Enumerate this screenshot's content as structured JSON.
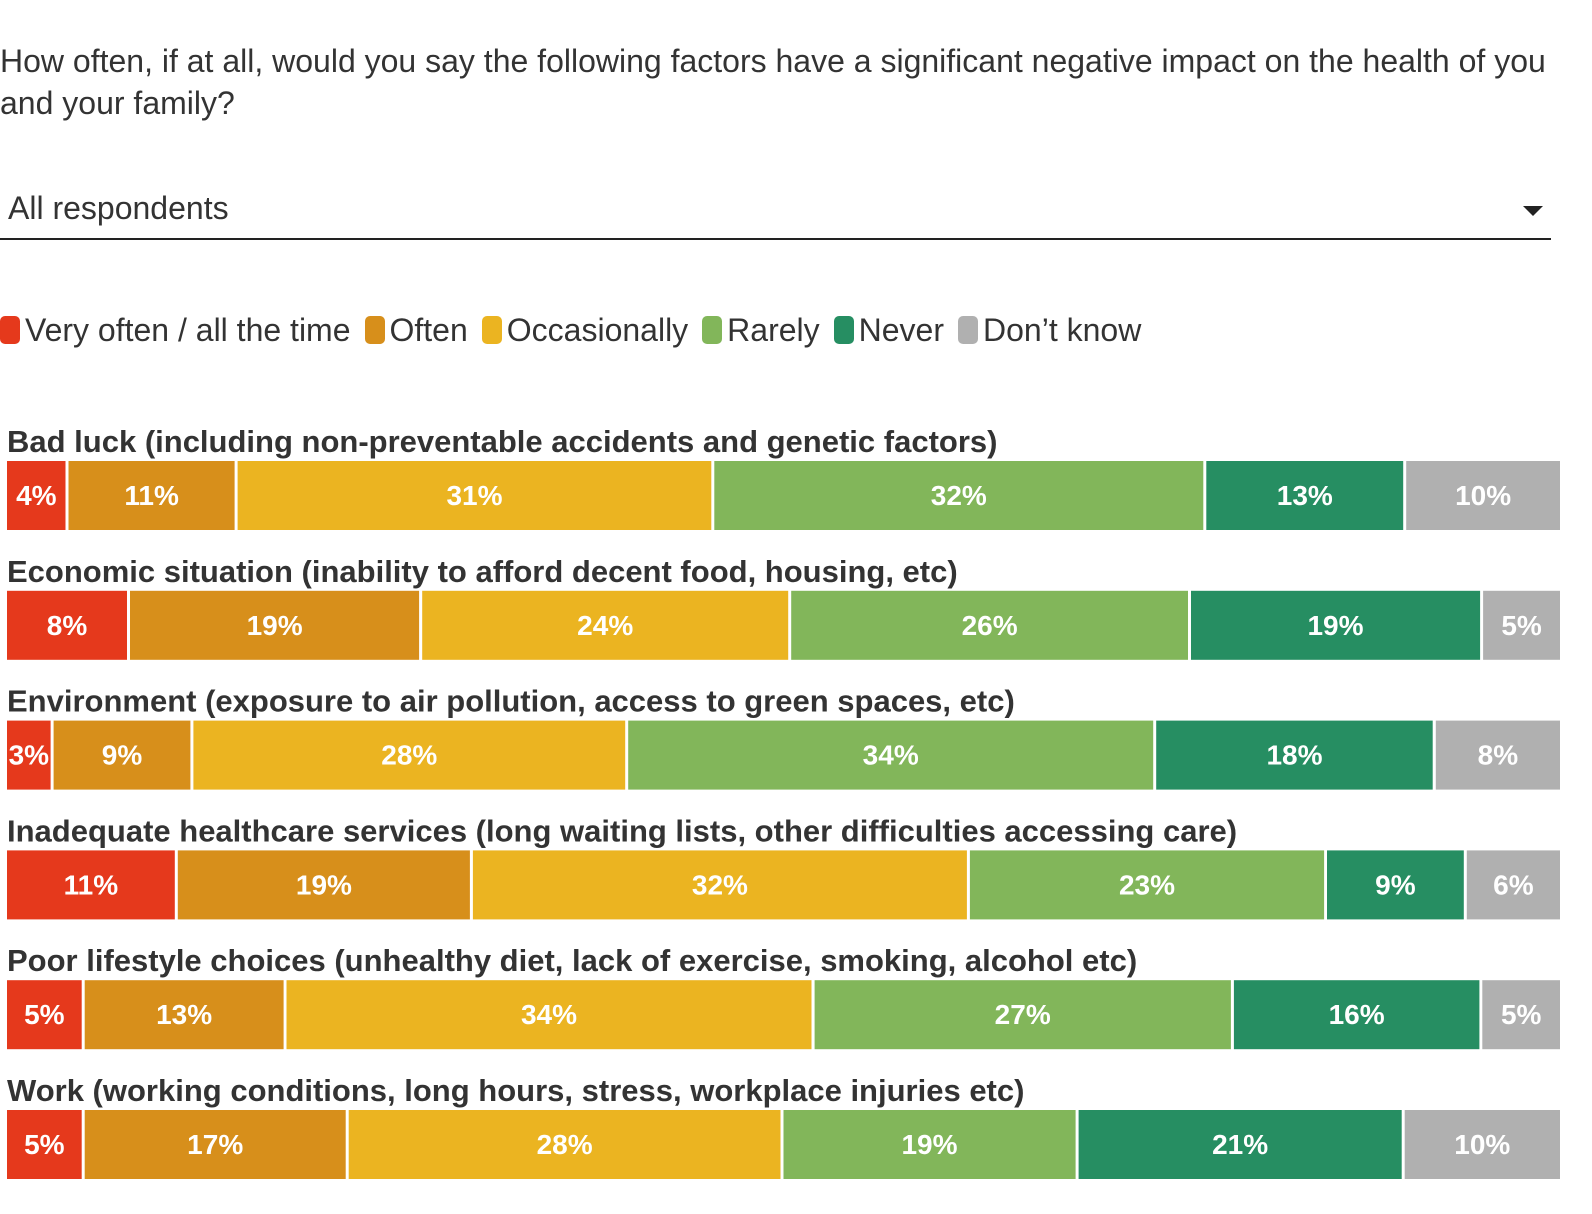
{
  "question": "How often, if at all, would you say the following factors have a significant negative impact on the health of you and your family?",
  "filter": {
    "selected": "All respondents",
    "icon": "chevron-down-icon"
  },
  "chart_data": {
    "type": "bar",
    "orientation": "horizontal",
    "stacked": true,
    "normalized": true,
    "legend_position": "top-left",
    "grid": false,
    "unit": "%",
    "categories": [
      "Bad luck (including non-preventable accidents and genetic factors)",
      "Economic situation (inability to afford decent food, housing, etc)",
      "Environment (exposure to air pollution, access to green spaces, etc)",
      "Inadequate healthcare services (long waiting lists, other difficulties accessing care)",
      "Poor lifestyle choices (unhealthy diet, lack of exercise, smoking, alcohol etc)",
      "Work (working conditions, long hours, stress, workplace injuries etc)"
    ],
    "series": [
      {
        "name": "Very often / all the time",
        "color": "#e5391c",
        "values": [
          4,
          8,
          3,
          11,
          5,
          5
        ]
      },
      {
        "name": "Often",
        "color": "#d78f1b",
        "values": [
          11,
          19,
          9,
          19,
          13,
          17
        ]
      },
      {
        "name": "Occasionally",
        "color": "#ebb421",
        "values": [
          31,
          24,
          28,
          32,
          34,
          28
        ]
      },
      {
        "name": "Rarely",
        "color": "#82b65a",
        "values": [
          32,
          26,
          34,
          23,
          27,
          19
        ]
      },
      {
        "name": "Never",
        "color": "#268e62",
        "values": [
          13,
          19,
          18,
          9,
          16,
          21
        ]
      },
      {
        "name": "Don’t know",
        "color": "#b0b0b0",
        "values": [
          10,
          5,
          8,
          6,
          5,
          10
        ]
      }
    ],
    "value_labels": [
      [
        "4%",
        "11%",
        "31%",
        "32%",
        "13%",
        "10%"
      ],
      [
        "8%",
        "19%",
        "24%",
        "26%",
        "19%",
        "5%"
      ],
      [
        "3%",
        "9%",
        "28%",
        "34%",
        "18%",
        "8%"
      ],
      [
        "11%",
        "19%",
        "32%",
        "23%",
        "9%",
        "6%"
      ],
      [
        "5%",
        "13%",
        "34%",
        "27%",
        "16%",
        "5%"
      ],
      [
        "5%",
        "17%",
        "28%",
        "19%",
        "21%",
        "10%"
      ]
    ]
  }
}
